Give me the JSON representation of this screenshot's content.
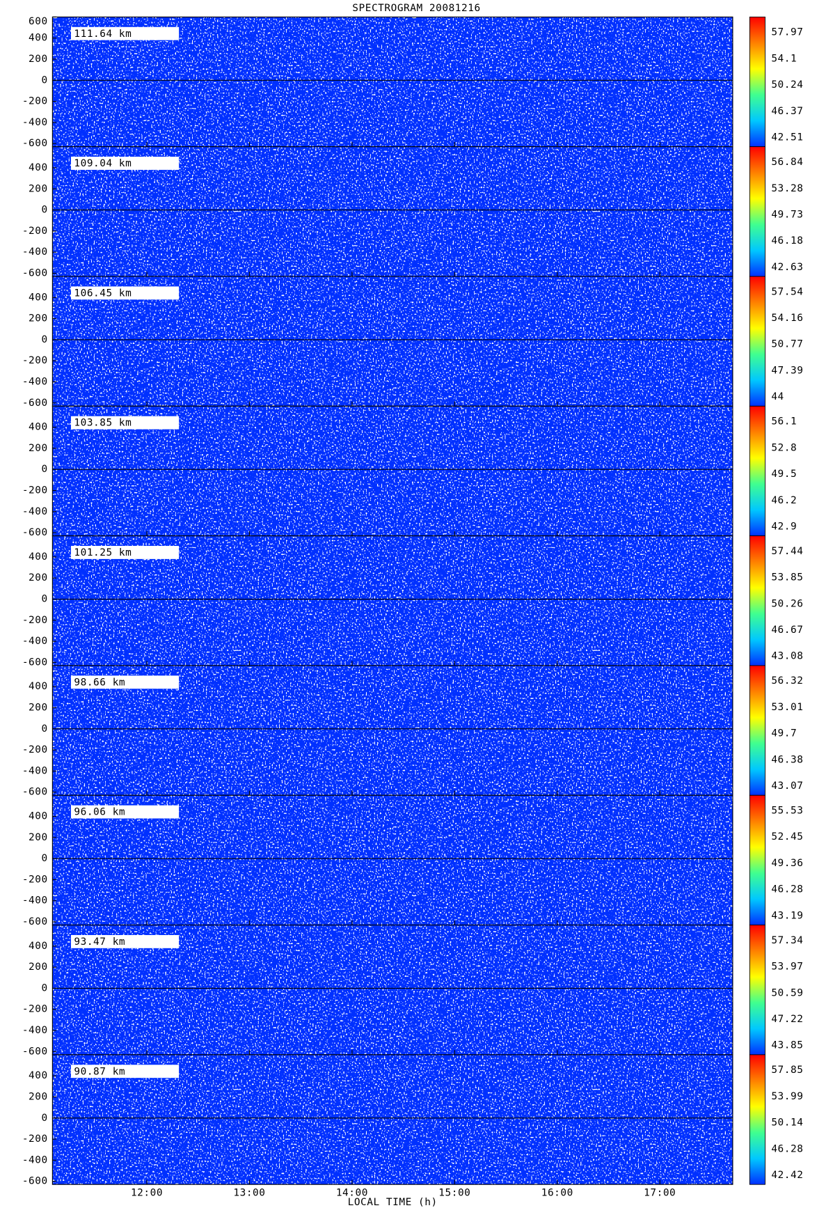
{
  "title": "SPECTROGRAM  20081216",
  "xlabel": "LOCAL TIME (h)",
  "xlim": [
    11.08,
    17.71
  ],
  "xticks": [
    {
      "value": 12,
      "label": "12:00"
    },
    {
      "value": 13,
      "label": "13:00"
    },
    {
      "value": 14,
      "label": "14:00"
    },
    {
      "value": 15,
      "label": "15:00"
    },
    {
      "value": 16,
      "label": "16:00"
    },
    {
      "value": 17,
      "label": "17:00"
    }
  ],
  "colorscale": [
    "#0030ff",
    "#00c8ff",
    "#40ff90",
    "#ffff00",
    "#ff8000",
    "#ff0000"
  ],
  "chart_data": [
    {
      "type": "heatmap",
      "label": "111.64 km",
      "ylim": [
        -630,
        600
      ],
      "yticks": [
        -600,
        -400,
        -200,
        0,
        200,
        400,
        600
      ],
      "clim": [
        41.16,
        60.25
      ],
      "cticks": [
        42.51,
        46.37,
        50.24,
        54.1,
        57.97
      ]
    },
    {
      "type": "heatmap",
      "label": "109.04 km",
      "ylim": [
        -630,
        600
      ],
      "yticks": [
        -600,
        -400,
        -200,
        0,
        200,
        400
      ],
      "clim": [
        41.39,
        58.94
      ],
      "cticks": [
        42.63,
        46.18,
        49.73,
        53.28,
        56.84
      ]
    },
    {
      "type": "heatmap",
      "label": "106.45 km",
      "ylim": [
        -630,
        600
      ],
      "yticks": [
        -600,
        -400,
        -200,
        0,
        200,
        400
      ],
      "clim": [
        42.82,
        59.54
      ],
      "cticks": [
        44.0,
        47.39,
        50.77,
        54.16,
        57.54
      ]
    },
    {
      "type": "heatmap",
      "label": "103.85 km",
      "ylim": [
        -630,
        600
      ],
      "yticks": [
        -600,
        -400,
        -200,
        0,
        200,
        400
      ],
      "clim": [
        41.75,
        58.05
      ],
      "cticks": [
        42.9,
        46.2,
        49.5,
        52.8,
        56.1
      ]
    },
    {
      "type": "heatmap",
      "label": "101.25 km",
      "ylim": [
        -630,
        600
      ],
      "yticks": [
        -600,
        -400,
        -200,
        0,
        200,
        400
      ],
      "clim": [
        41.82,
        59.56
      ],
      "cticks": [
        43.08,
        46.67,
        50.26,
        53.85,
        57.44
      ]
    },
    {
      "type": "heatmap",
      "label": "98.66 km",
      "ylim": [
        -630,
        600
      ],
      "yticks": [
        -600,
        -400,
        -200,
        0,
        200,
        400
      ],
      "clim": [
        41.91,
        58.28
      ],
      "cticks": [
        43.07,
        46.38,
        49.7,
        53.01,
        56.32
      ]
    },
    {
      "type": "heatmap",
      "label": "96.06 km",
      "ylim": [
        -630,
        600
      ],
      "yticks": [
        -600,
        -400,
        -200,
        0,
        200,
        400
      ],
      "clim": [
        42.11,
        57.35
      ],
      "cticks": [
        43.19,
        46.28,
        49.36,
        52.45,
        55.53
      ]
    },
    {
      "type": "heatmap",
      "label": "93.47 km",
      "ylim": [
        -630,
        600
      ],
      "yticks": [
        -600,
        -400,
        -200,
        0,
        200,
        400
      ],
      "clim": [
        42.67,
        59.33
      ],
      "cticks": [
        43.85,
        47.22,
        50.59,
        53.97,
        57.34
      ]
    },
    {
      "type": "heatmap",
      "label": "90.87 km",
      "ylim": [
        -630,
        600
      ],
      "yticks": [
        -600,
        -400,
        -200,
        0,
        200,
        400
      ],
      "clim": [
        41.07,
        60.13
      ],
      "cticks": [
        42.42,
        46.28,
        50.14,
        53.99,
        57.85
      ]
    }
  ]
}
